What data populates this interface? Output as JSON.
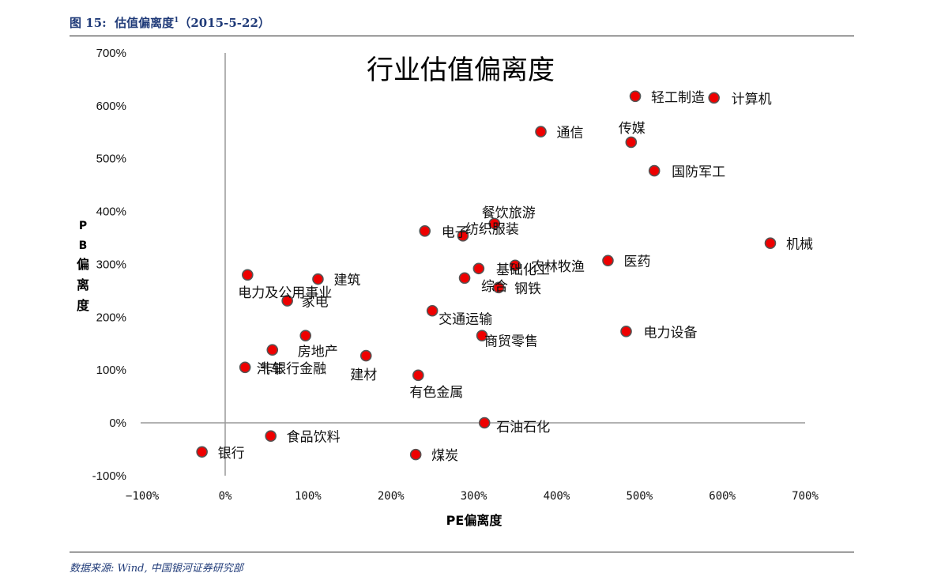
{
  "figure": {
    "number_label": "图 15:",
    "caption": "估值偏离度",
    "caption_sup": "1",
    "date": "（2015-5-22）"
  },
  "source": "数据来源: Wind, 中国银河证券研究部",
  "chart_data": {
    "type": "scatter",
    "title": "行业估值偏离度",
    "xlabel": "PE偏离度",
    "ylabel": "PB偏离度",
    "xlim": [
      -100,
      700
    ],
    "ylim": [
      -100,
      700
    ],
    "x_ticks": [
      "−100%",
      "0%",
      "100%",
      "200%",
      "300%",
      "400%",
      "500%",
      "600%",
      "700%"
    ],
    "y_ticks": [
      "-100%",
      "0%",
      "100%",
      "200%",
      "300%",
      "400%",
      "500%",
      "600%",
      "700%"
    ],
    "grid": false,
    "marker_color": "#ee0000",
    "points": [
      {
        "label": "银行",
        "x": -28,
        "y": -55
      },
      {
        "label": "食品饮料",
        "x": 55,
        "y": -25
      },
      {
        "label": "煤炭",
        "x": 230,
        "y": -60
      },
      {
        "label": "石油石化",
        "x": 313,
        "y": 0
      },
      {
        "label": "有色金属",
        "x": 233,
        "y": 90
      },
      {
        "label": "建材",
        "x": 170,
        "y": 127
      },
      {
        "label": "非银行金融",
        "x": 24,
        "y": 105
      },
      {
        "label": "汽车",
        "x": 57,
        "y": 138
      },
      {
        "label": "房地产",
        "x": 97,
        "y": 165
      },
      {
        "label": "家电",
        "x": 75,
        "y": 231
      },
      {
        "label": "电力及公用事业",
        "x": 27,
        "y": 280
      },
      {
        "label": "建筑",
        "x": 112,
        "y": 272
      },
      {
        "label": "交通运输",
        "x": 250,
        "y": 212
      },
      {
        "label": "商贸零售",
        "x": 310,
        "y": 165
      },
      {
        "label": "综合",
        "x": 289,
        "y": 274
      },
      {
        "label": "基础化工",
        "x": 306,
        "y": 292
      },
      {
        "label": "钢铁",
        "x": 330,
        "y": 256
      },
      {
        "label": "农林牧渔",
        "x": 350,
        "y": 298
      },
      {
        "label": "电子",
        "x": 241,
        "y": 363
      },
      {
        "label": "纺织服装",
        "x": 287,
        "y": 354
      },
      {
        "label": "餐饮旅游",
        "x": 325,
        "y": 377
      },
      {
        "label": "医药",
        "x": 462,
        "y": 307
      },
      {
        "label": "电力设备",
        "x": 484,
        "y": 173
      },
      {
        "label": "机械",
        "x": 658,
        "y": 340
      },
      {
        "label": "通信",
        "x": 381,
        "y": 551
      },
      {
        "label": "传媒",
        "x": 490,
        "y": 531
      },
      {
        "label": "国防军工",
        "x": 518,
        "y": 477
      },
      {
        "label": "轻工制造",
        "x": 495,
        "y": 618
      },
      {
        "label": "计算机",
        "x": 590,
        "y": 615
      }
    ]
  }
}
